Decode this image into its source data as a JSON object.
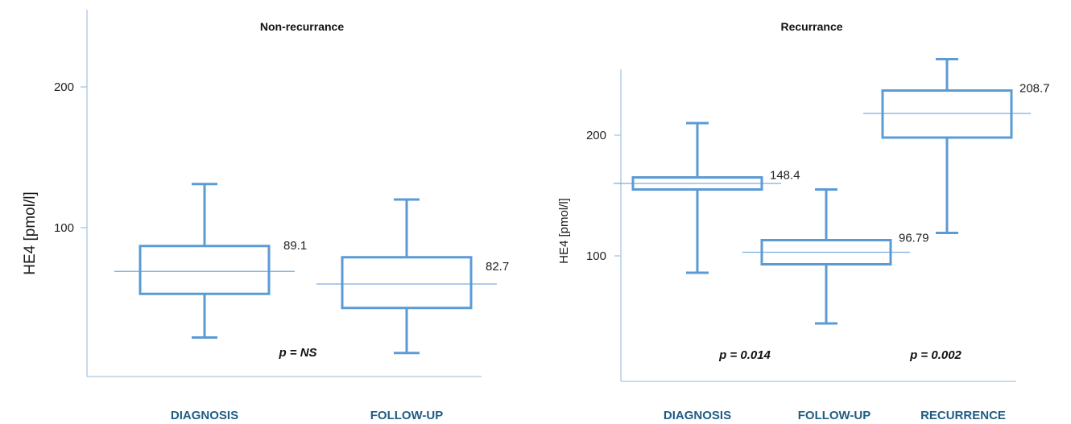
{
  "colors": {
    "box": "#5b9bd5",
    "axis": "#a8c6e0",
    "category_label": "#1f5d85"
  },
  "chart_data": [
    {
      "type": "box",
      "title": "Non-recurrance",
      "ylabel": "HE4 [pmol/l]",
      "yticks": [
        100,
        200
      ],
      "ylim": [
        -5,
        255
      ],
      "categories": [
        "DIAGNOSIS",
        "FOLLOW-UP"
      ],
      "boxes": [
        {
          "category": "DIAGNOSIS",
          "whisker_low": 22,
          "q1": 53,
          "median": 69,
          "q3": 87,
          "whisker_high": 131,
          "label": "89.1"
        },
        {
          "category": "FOLLOW-UP",
          "whisker_low": 11,
          "q1": 43,
          "median": 60,
          "q3": 79,
          "whisker_high": 120,
          "label": "82.7"
        }
      ],
      "annotations": [
        "p = NS"
      ]
    },
    {
      "type": "box",
      "title": "Recurrance",
      "ylabel": "HE4 [pmol/l]",
      "yticks": [
        100,
        200
      ],
      "ylim": [
        -10,
        260
      ],
      "categories": [
        "DIAGNOSIS",
        "FOLLOW-UP",
        "RECURRENCE"
      ],
      "boxes": [
        {
          "category": "DIAGNOSIS",
          "whisker_low": 86,
          "q1": 155,
          "median": 160,
          "q3": 165,
          "whisker_high": 210,
          "label": "148.4"
        },
        {
          "category": "FOLLOW-UP",
          "whisker_low": 44,
          "q1": 93,
          "median": 103,
          "q3": 113,
          "whisker_high": 155,
          "label": "96.79"
        },
        {
          "category": "RECURRENCE",
          "whisker_low": 119,
          "q1": 198,
          "median": 218,
          "q3": 237,
          "whisker_high": 263,
          "label": "208.7"
        }
      ],
      "annotations": [
        "p = 0.014",
        "p = 0.002"
      ]
    }
  ]
}
